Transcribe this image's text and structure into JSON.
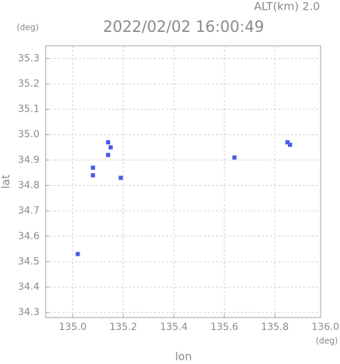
{
  "chart_data": {
    "type": "scatter",
    "title": "2022/02/02 16:00:49",
    "subtitle": "ALT(km) 2.0",
    "x_label": "lon",
    "y_label": "lat",
    "x_unit": "(deg)",
    "y_unit": "(deg)",
    "series": [
      {
        "color": "#4a5ae8",
        "x": [
          135.02,
          135.15,
          135.14,
          135.14,
          135.08,
          135.08,
          135.19,
          135.64,
          135.85,
          135.86
        ],
        "values": [
          34.53,
          34.95,
          34.97,
          34.92,
          34.87,
          34.84,
          34.83,
          34.91,
          34.97,
          34.96
        ]
      }
    ],
    "xlim": [
      134.893,
      135.981
    ],
    "ylim": [
      34.28,
      35.35
    ],
    "xticks": [
      {
        "value": 135.0,
        "label": "135.0"
      },
      135.2,
      135.4,
      135.6,
      135.8,
      {
        "value": 136.0,
        "label": "136.0"
      }
    ],
    "yticks": [
      35.3,
      35.2,
      35.1,
      {
        "value": 35.0,
        "label": "35.0"
      },
      34.9,
      34.8,
      34.7,
      34.6,
      34.5,
      34.4,
      34.3
    ],
    "grid": true
  }
}
